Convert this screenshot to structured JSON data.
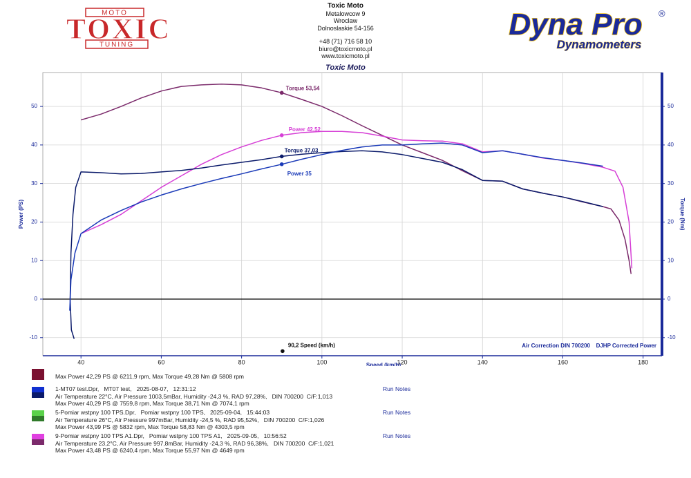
{
  "logo_left": {
    "main": "TOXIC",
    "top": "MOTO",
    "bottom": "TUNING"
  },
  "header": {
    "lines": [
      "Toxic Moto",
      "Metalowcow 9",
      "Wroclaw",
      "Dolnoslaskie 54-156",
      "+48 (71) 716 58 10",
      "biuro@toxicmoto.pl",
      "www.toxicmoto.pl"
    ],
    "subtitle": "Toxic Moto"
  },
  "logo_right": {
    "main": "Dyna Pro",
    "mark": "®",
    "sub": "Dynamometers"
  },
  "chart_data": {
    "type": "line",
    "x_label": "Speed (km/h)",
    "y_label": "Power (PS)",
    "y2_label": "Torque (Nm)",
    "xlim": [
      30.5,
      184.7
    ],
    "ylim": [
      -14.7,
      58.8
    ],
    "y2lim": [
      -14.7,
      58.8
    ],
    "xticks": [
      40,
      60,
      80,
      100,
      120,
      140,
      160,
      180
    ],
    "yticks": [
      -10,
      0,
      10,
      20,
      30,
      40,
      50
    ],
    "y2ticks": [
      -10,
      0,
      10,
      20,
      30,
      40,
      50
    ],
    "grid": true,
    "notes": [
      "Air Correction DIN 700200",
      "DJHP Corrected Power"
    ],
    "series": [
      {
        "name": "Torque",
        "color": "#7b2a6b",
        "axis": "y2",
        "x": [
          40,
          45,
          50,
          55,
          60,
          65,
          70,
          75,
          80,
          85,
          90,
          95,
          100,
          105,
          110,
          115,
          120,
          125,
          130,
          135,
          140,
          145,
          150,
          155,
          160,
          165,
          170,
          172,
          174,
          175.5,
          176.5,
          177
        ],
        "values": [
          46.5,
          48,
          50,
          52.2,
          54,
          55.2,
          55.6,
          55.8,
          55.6,
          54.8,
          53.54,
          51.8,
          50,
          47.6,
          45,
          42.5,
          40,
          38,
          36,
          33.3,
          30.8,
          30.6,
          28.6,
          27.5,
          26.5,
          25.2,
          24,
          23.4,
          20.5,
          15.5,
          10,
          6.5
        ]
      },
      {
        "name": "Power",
        "color": "#d63fd6",
        "x": [
          40,
          45,
          50,
          55,
          60,
          65,
          70,
          75,
          80,
          85,
          90,
          95,
          100,
          105,
          110,
          115,
          120,
          125,
          130,
          135,
          140,
          145,
          150,
          155,
          160,
          165,
          170,
          173,
          175,
          176.5,
          177.2
        ],
        "values": [
          17,
          19.3,
          22,
          25.5,
          29,
          32,
          35,
          37.5,
          39.5,
          41.2,
          42.52,
          43.2,
          43.5,
          43.5,
          43.2,
          42.3,
          41.3,
          41.1,
          41,
          40.3,
          38.2,
          38.5,
          37.6,
          36.6,
          36,
          35.2,
          34.2,
          33.2,
          29,
          20,
          8
        ]
      },
      {
        "name": "Torque",
        "color": "#0a1a6a",
        "axis": "y2",
        "x": [
          38.3,
          37.6,
          37.3,
          37.5,
          38,
          38.7,
          40,
          45,
          50,
          55,
          60,
          65,
          70,
          75,
          80,
          85,
          90,
          95,
          100,
          105,
          110,
          115,
          120,
          125,
          130,
          135,
          140,
          145,
          150,
          155,
          160,
          165,
          170
        ],
        "values": [
          -10.3,
          -8,
          0,
          12,
          22,
          29,
          33,
          32.8,
          32.5,
          32.6,
          33,
          33.4,
          34,
          34.8,
          35.5,
          36.2,
          37.03,
          37.6,
          38,
          38.3,
          38.5,
          38.2,
          37.5,
          36.5,
          35.5,
          33.6,
          30.8,
          30.6,
          28.6,
          27.5,
          26.5,
          25.3,
          24
        ]
      },
      {
        "name": "Power",
        "color": "#1a3ab8",
        "x": [
          37.2,
          37.5,
          38.5,
          40,
          45,
          50,
          55,
          60,
          65,
          70,
          75,
          80,
          85,
          90,
          95,
          100,
          105,
          110,
          115,
          120,
          125,
          130,
          135,
          140,
          145,
          150,
          155,
          160,
          165,
          170
        ],
        "values": [
          -3,
          5,
          12,
          17,
          20.5,
          23,
          25.2,
          27,
          28.6,
          30,
          31.3,
          32.5,
          33.8,
          35,
          36.3,
          37.5,
          38.6,
          39.5,
          40,
          40,
          40.3,
          40.5,
          40,
          38,
          38.5,
          37.6,
          36.7,
          36,
          35.3,
          34.5
        ]
      }
    ],
    "annotations": [
      {
        "text": "Torque 53,54",
        "x": 90,
        "y": 53.54,
        "color": "#7b2a6b"
      },
      {
        "text": "Power 42,52",
        "x": 90,
        "y": 42.52,
        "color": "#d63fd6"
      },
      {
        "text": "Torque 37,03",
        "x": 90,
        "y": 37.03,
        "color": "#0a1a6a"
      },
      {
        "text": "Power 35",
        "x": 90,
        "y": 35,
        "color": "#1a3ab8"
      },
      {
        "text": "90,2 Speed (km/h)",
        "x": 90.2,
        "y": -13.5,
        "color": "#111111"
      }
    ]
  },
  "legend": [
    {
      "colors": [
        "#7a1030",
        "#7a1030"
      ],
      "lines": [
        "Max Power 42,29 PS @ 6211,9 rpm, Max Torque 49,28 Nm @ 5808 rpm"
      ]
    },
    {
      "colors": [
        "#1030d0",
        "#0a1a6a"
      ],
      "lines": [
        "1-MT07 test.Dpr,   MT07 test,   2025-08-07,   12:31:12",
        "Air Temperature 22°C, Air Pressure 1003,5mBar, Humidity -24,3 %, RAD 97,28%,   DIN 700200  C/F:1,013",
        "Max Power 40,29 PS @ 7559,8 rpm, Max Torque 38,71 Nm @ 7074,1 rpm"
      ],
      "notes": "Run Notes"
    },
    {
      "colors": [
        "#5ad24a",
        "#2f7a2a"
      ],
      "lines": [
        "5-Pomiar wstpny 100 TPS.Dpr,   Pomiar wstpny 100 TPS,   2025-09-04,   15:44:03",
        "Air Temperature 26°C, Air Pressure 997mBar, Humidity -24,5 %, RAD 95,52%,   DIN 700200  C/F:1,026",
        "Max Power 43,99 PS @ 5832 rpm, Max Torque 58,83 Nm @ 4303,5 rpm"
      ],
      "notes": "Run Notes"
    },
    {
      "colors": [
        "#e040e0",
        "#7b2a6b"
      ],
      "lines": [
        "9-Pomiar wstpny 100 TPS A1.Dpr,   Pomiar wstpny 100 TPS A1,   2025-09-05,   10:56:52",
        "Air Temperature 23,2°C, Air Pressure 997,8mBar, Humidity -24,3 %, RAD 96,38%,   DIN 700200  C/F:1,021",
        "Max Power 43,48 PS @ 6240,4 rpm, Max Torque 55,97 Nm @ 4649 rpm"
      ],
      "notes": "Run Notes"
    }
  ]
}
